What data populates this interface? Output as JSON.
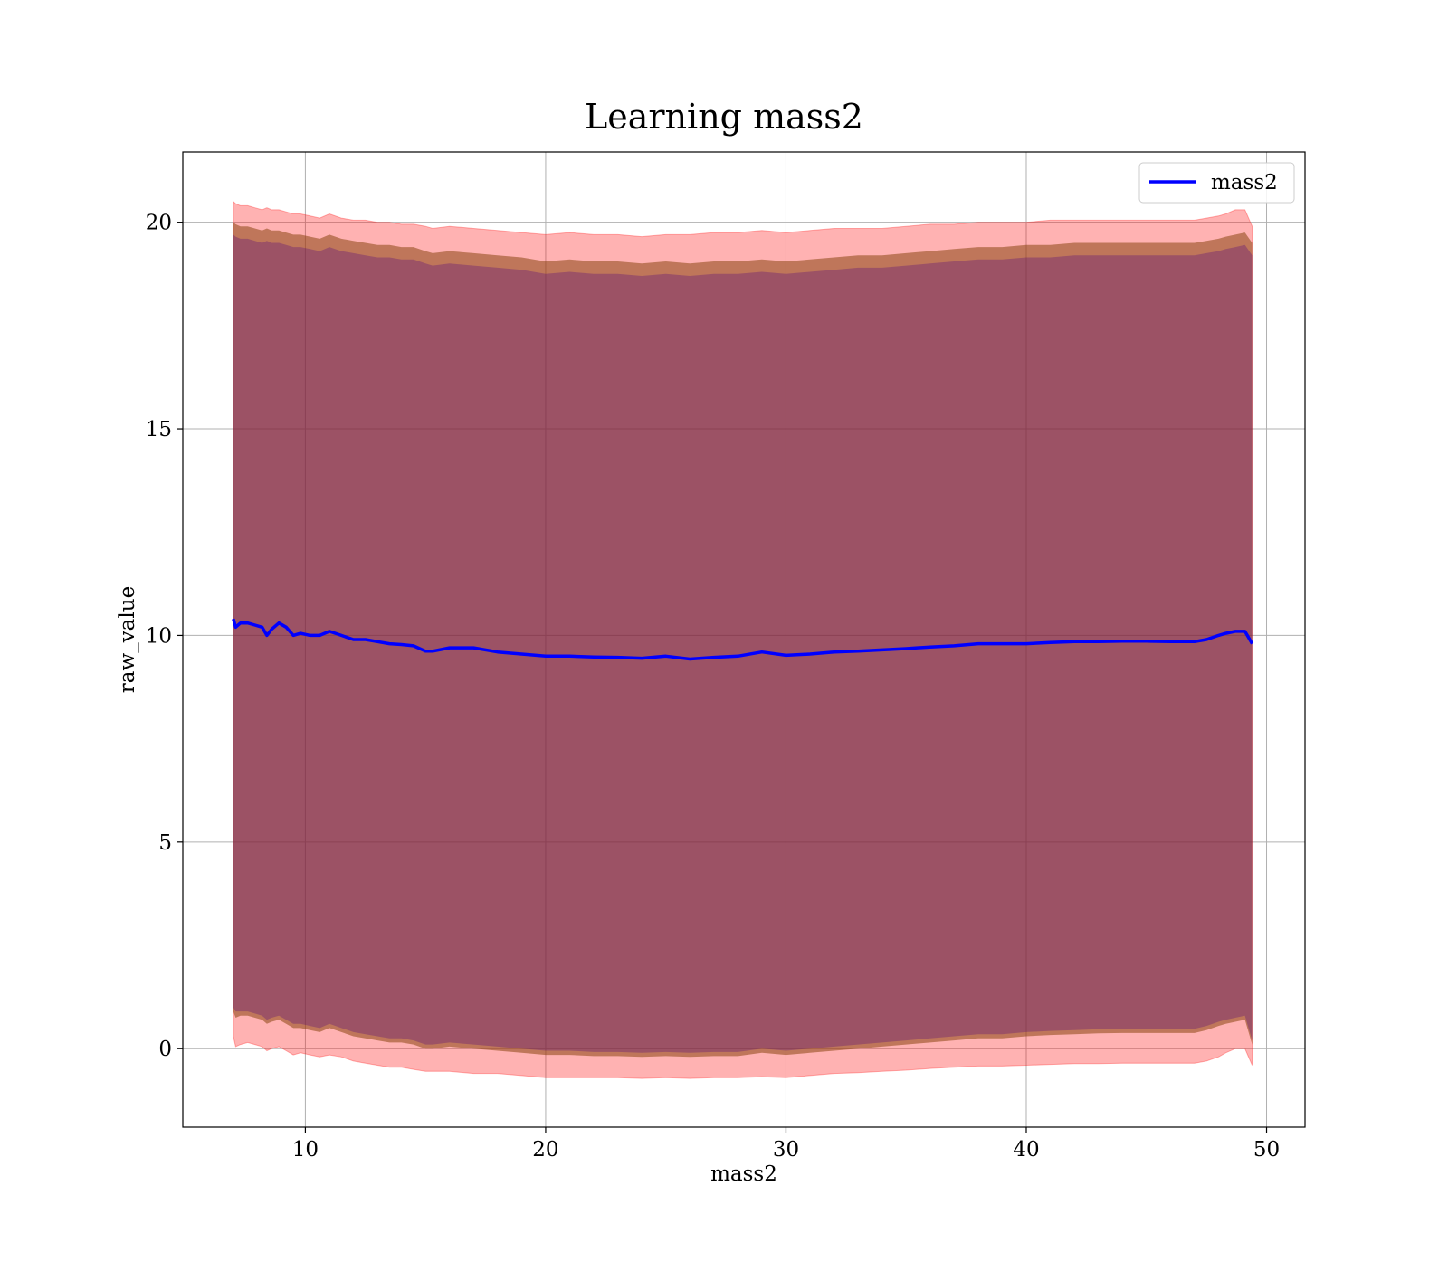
{
  "chart_data": {
    "type": "line",
    "title": "Learning mass2",
    "xlabel": "mass2",
    "ylabel": "raw_value",
    "xlim": [
      4.9,
      51.6
    ],
    "ylim": [
      -1.9,
      21.7
    ],
    "xticks": [
      10,
      20,
      30,
      40,
      50
    ],
    "yticks": [
      0,
      5,
      10,
      15,
      20
    ],
    "grid": true,
    "legend": {
      "location": "upper right",
      "entries": [
        "mass2"
      ]
    },
    "colors": {
      "line": "#0000ff",
      "band_outer": "#ff0000",
      "band_inner": "#8b4513",
      "band_core": "#4b0082",
      "grid": "#b0b0b0"
    },
    "series": [
      {
        "name": "mass2",
        "x": [
          7.0,
          7.1,
          7.3,
          7.6,
          7.9,
          8.2,
          8.4,
          8.6,
          8.9,
          9.2,
          9.5,
          9.8,
          10.2,
          10.6,
          11.0,
          11.5,
          12.0,
          12.5,
          13.0,
          13.5,
          14.0,
          14.5,
          15.0,
          15.3,
          16.0,
          17.0,
          18.0,
          19.0,
          20.0,
          21.0,
          22.0,
          23.0,
          24.0,
          25.0,
          26.0,
          27.0,
          28.0,
          29.0,
          30.0,
          31.0,
          32.0,
          33.0,
          34.0,
          35.0,
          36.0,
          37.0,
          38.0,
          39.0,
          40.0,
          41.0,
          42.0,
          43.0,
          44.0,
          45.0,
          46.0,
          47.0,
          47.5,
          48.0,
          48.3,
          48.7,
          49.1,
          49.4
        ],
        "y": [
          10.4,
          10.2,
          10.3,
          10.3,
          10.25,
          10.2,
          10.0,
          10.15,
          10.3,
          10.2,
          10.0,
          10.05,
          10.0,
          10.0,
          10.1,
          10.0,
          9.9,
          9.9,
          9.85,
          9.8,
          9.78,
          9.75,
          9.62,
          9.62,
          9.7,
          9.7,
          9.6,
          9.55,
          9.5,
          9.5,
          9.48,
          9.47,
          9.45,
          9.5,
          9.43,
          9.47,
          9.5,
          9.6,
          9.52,
          9.55,
          9.6,
          9.62,
          9.65,
          9.68,
          9.72,
          9.75,
          9.8,
          9.8,
          9.8,
          9.83,
          9.85,
          9.85,
          9.86,
          9.86,
          9.85,
          9.85,
          9.9,
          10.0,
          10.05,
          10.1,
          10.1,
          9.8
        ],
        "outer_upper": [
          20.5,
          20.45,
          20.4,
          20.4,
          20.35,
          20.3,
          20.35,
          20.3,
          20.3,
          20.25,
          20.2,
          20.2,
          20.15,
          20.1,
          20.2,
          20.1,
          20.05,
          20.05,
          20.0,
          20.0,
          19.95,
          19.95,
          19.9,
          19.85,
          19.9,
          19.85,
          19.8,
          19.75,
          19.7,
          19.75,
          19.7,
          19.7,
          19.65,
          19.7,
          19.7,
          19.75,
          19.75,
          19.8,
          19.75,
          19.8,
          19.85,
          19.85,
          19.85,
          19.9,
          19.95,
          19.95,
          20.0,
          20.0,
          20.0,
          20.05,
          20.05,
          20.05,
          20.05,
          20.05,
          20.05,
          20.05,
          20.1,
          20.15,
          20.2,
          20.3,
          20.3,
          19.9
        ],
        "outer_lower": [
          0.3,
          0.05,
          0.1,
          0.15,
          0.1,
          0.05,
          -0.05,
          0.0,
          0.05,
          -0.05,
          -0.15,
          -0.1,
          -0.15,
          -0.2,
          -0.15,
          -0.2,
          -0.3,
          -0.35,
          -0.4,
          -0.45,
          -0.45,
          -0.5,
          -0.55,
          -0.55,
          -0.55,
          -0.6,
          -0.6,
          -0.65,
          -0.7,
          -0.7,
          -0.7,
          -0.7,
          -0.72,
          -0.7,
          -0.72,
          -0.7,
          -0.7,
          -0.68,
          -0.7,
          -0.65,
          -0.6,
          -0.58,
          -0.55,
          -0.52,
          -0.48,
          -0.45,
          -0.42,
          -0.42,
          -0.4,
          -0.38,
          -0.36,
          -0.36,
          -0.35,
          -0.35,
          -0.35,
          -0.35,
          -0.3,
          -0.2,
          -0.1,
          0.0,
          0.0,
          -0.4
        ],
        "inner_upper": [
          20.0,
          19.95,
          19.9,
          19.9,
          19.85,
          19.8,
          19.85,
          19.8,
          19.8,
          19.75,
          19.7,
          19.7,
          19.65,
          19.6,
          19.7,
          19.6,
          19.55,
          19.5,
          19.45,
          19.45,
          19.4,
          19.4,
          19.3,
          19.25,
          19.3,
          19.25,
          19.2,
          19.15,
          19.05,
          19.1,
          19.05,
          19.05,
          19.0,
          19.05,
          19.0,
          19.05,
          19.05,
          19.1,
          19.05,
          19.1,
          19.15,
          19.2,
          19.2,
          19.25,
          19.3,
          19.35,
          19.4,
          19.4,
          19.45,
          19.45,
          19.5,
          19.5,
          19.5,
          19.5,
          19.5,
          19.5,
          19.55,
          19.6,
          19.65,
          19.7,
          19.75,
          19.5
        ],
        "inner_lower": [
          0.9,
          0.75,
          0.8,
          0.8,
          0.75,
          0.7,
          0.6,
          0.65,
          0.7,
          0.6,
          0.5,
          0.5,
          0.45,
          0.4,
          0.5,
          0.4,
          0.3,
          0.25,
          0.2,
          0.15,
          0.15,
          0.1,
          0.0,
          0.0,
          0.05,
          0.0,
          -0.05,
          -0.1,
          -0.15,
          -0.15,
          -0.18,
          -0.18,
          -0.2,
          -0.18,
          -0.2,
          -0.18,
          -0.18,
          -0.1,
          -0.15,
          -0.1,
          -0.05,
          0.0,
          0.05,
          0.1,
          0.15,
          0.2,
          0.25,
          0.25,
          0.3,
          0.33,
          0.35,
          0.37,
          0.38,
          0.38,
          0.38,
          0.38,
          0.45,
          0.55,
          0.6,
          0.65,
          0.7,
          0.1
        ],
        "core_upper": [
          19.7,
          19.65,
          19.6,
          19.6,
          19.55,
          19.5,
          19.55,
          19.5,
          19.5,
          19.45,
          19.4,
          19.4,
          19.35,
          19.3,
          19.4,
          19.3,
          19.25,
          19.2,
          19.15,
          19.15,
          19.1,
          19.1,
          19.0,
          18.95,
          19.0,
          18.95,
          18.9,
          18.85,
          18.75,
          18.8,
          18.75,
          18.75,
          18.7,
          18.75,
          18.7,
          18.75,
          18.75,
          18.8,
          18.75,
          18.8,
          18.85,
          18.9,
          18.9,
          18.95,
          19.0,
          19.05,
          19.1,
          19.1,
          19.15,
          19.15,
          19.2,
          19.2,
          19.2,
          19.2,
          19.2,
          19.2,
          19.25,
          19.3,
          19.35,
          19.4,
          19.45,
          19.2
        ],
        "core_lower": [
          1.0,
          0.9,
          0.9,
          0.9,
          0.85,
          0.8,
          0.7,
          0.75,
          0.8,
          0.7,
          0.6,
          0.6,
          0.55,
          0.5,
          0.6,
          0.5,
          0.4,
          0.35,
          0.3,
          0.25,
          0.25,
          0.2,
          0.1,
          0.1,
          0.15,
          0.1,
          0.05,
          0.0,
          -0.05,
          -0.05,
          -0.08,
          -0.08,
          -0.1,
          -0.08,
          -0.1,
          -0.08,
          -0.08,
          0.0,
          -0.05,
          0.0,
          0.05,
          0.1,
          0.15,
          0.2,
          0.25,
          0.3,
          0.35,
          0.35,
          0.4,
          0.43,
          0.45,
          0.47,
          0.48,
          0.48,
          0.48,
          0.48,
          0.55,
          0.65,
          0.7,
          0.75,
          0.8,
          0.2
        ]
      }
    ]
  }
}
